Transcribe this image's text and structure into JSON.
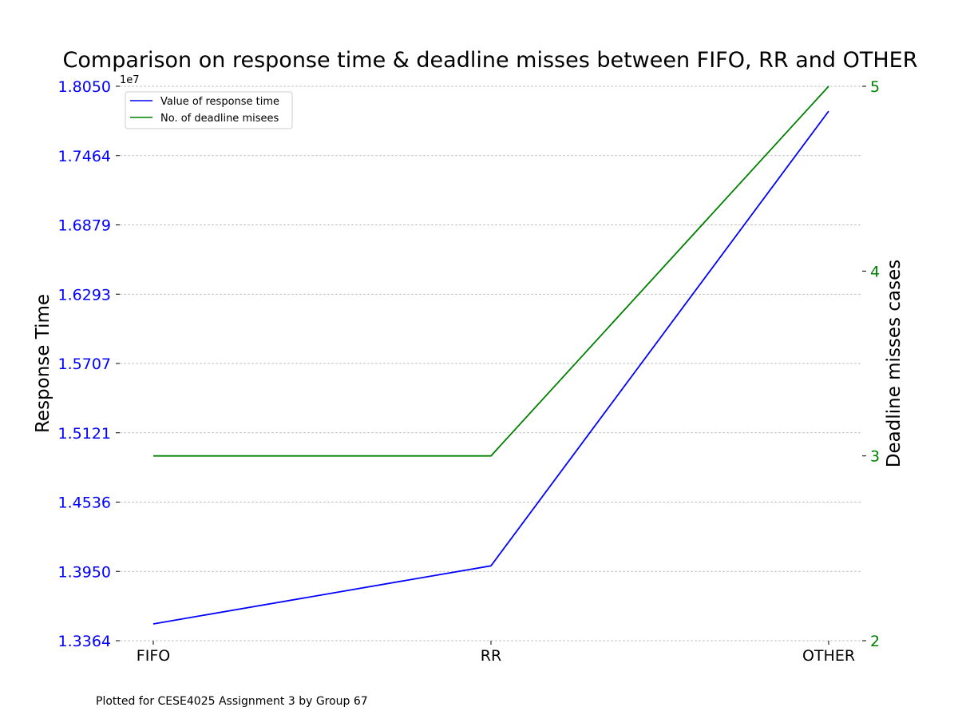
{
  "chart_data": {
    "type": "line",
    "title": "Comparison on response time & deadline misses between FIFO, RR and OTHER",
    "categories": [
      "FIFO",
      "RR",
      "OTHER"
    ],
    "left_axis": {
      "label": "Response Time",
      "offset_label": "1e7",
      "ticks": [
        "1.3364",
        "1.3950",
        "1.4536",
        "1.5121",
        "1.5707",
        "1.6293",
        "1.6879",
        "1.7464",
        "1.8050"
      ],
      "ylim": [
        13364000,
        18050000
      ],
      "color": "#0000ff"
    },
    "right_axis": {
      "label": "Deadline misses cases",
      "ticks": [
        "2",
        "3",
        "4",
        "5"
      ],
      "ylim": [
        2,
        5
      ],
      "color": "#008000"
    },
    "series": [
      {
        "name": "Value of response time",
        "axis": "left",
        "color": "#0000ff",
        "values": [
          13506000,
          13997000,
          17840000
        ]
      },
      {
        "name": "No. of deadline misees",
        "axis": "right",
        "color": "#008000",
        "values": [
          3,
          3,
          5
        ]
      }
    ],
    "grid": true,
    "legend_position": "upper-left"
  },
  "footnote": "Plotted for CESE4025 Assignment 3 by Group 67"
}
